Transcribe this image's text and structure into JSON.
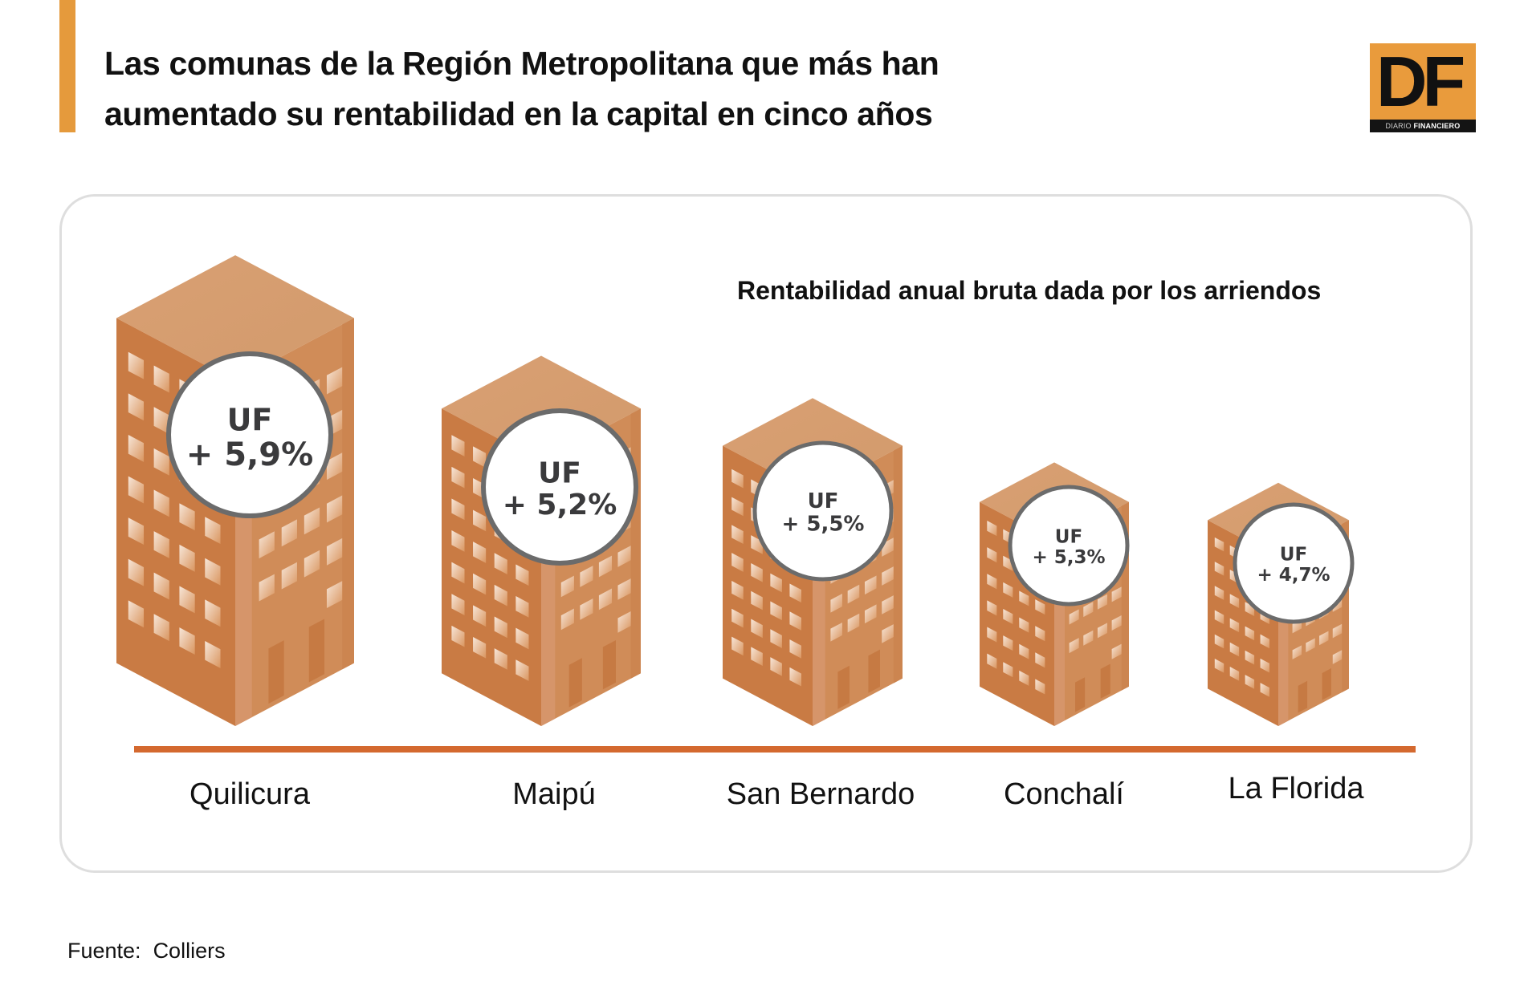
{
  "header": {
    "title_line1": "Las comunas de la Región Metropolitana que más han",
    "title_line2": "aumentado su rentabilidad en la capital en cinco años",
    "accent_color": "#E59A3C"
  },
  "logo": {
    "letters": "DF",
    "strip_light": "DIARIO ",
    "strip_bold": "FINANCIERO",
    "background": "#E99B3C"
  },
  "chart_data": {
    "type": "bar",
    "title": "Rentabilidad anual bruta dada por los arriendos",
    "xlabel": "",
    "ylabel": "",
    "categories": [
      "Quilicura",
      "Maipú",
      "San Bernardo",
      "Conchalí",
      "La Florida"
    ],
    "values": [
      5.9,
      5.2,
      5.5,
      5.3,
      4.7
    ],
    "value_labels": [
      "UF\n+ 5,9%",
      "UF\n+ 5,2%",
      "UF\n+ 5,5%",
      "UF\n+ 5,3%",
      "UF\n+ 4,7%"
    ],
    "value_prefix": "UF",
    "value_texts": [
      "+ 5,9%",
      "+ 5,2%",
      "+ 5,5%",
      "+ 5,3%",
      "+ 4,7%"
    ],
    "unit": "%",
    "mark": "isometric building icon per category",
    "building_color": "#CD824B",
    "baseline_color": "#D4692F",
    "bubble_border_color": "#6B6B6B"
  },
  "footer": {
    "source": "Fuente:  Colliers"
  }
}
